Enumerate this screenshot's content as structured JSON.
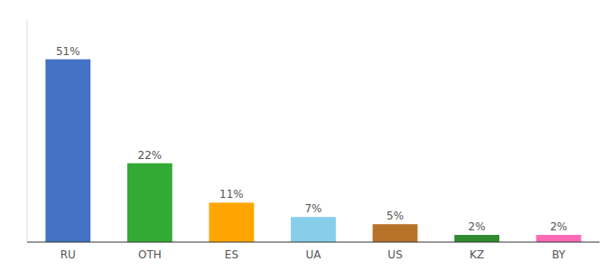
{
  "chart_data": {
    "type": "bar",
    "categories": [
      "RU",
      "OTH",
      "ES",
      "UA",
      "US",
      "KZ",
      "BY"
    ],
    "values": [
      51,
      22,
      11,
      7,
      5,
      2,
      2
    ],
    "value_labels": [
      "51%",
      "22%",
      "11%",
      "7%",
      "5%",
      "2%",
      "2%"
    ],
    "colors": [
      "#4472C4",
      "#33AA33",
      "#FFA500",
      "#87CEEB",
      "#B8732A",
      "#2E8B2E",
      "#FF69B4"
    ],
    "ylim": [
      0,
      62
    ],
    "data_labels": true,
    "tick_labels": "x",
    "grid": false
  }
}
